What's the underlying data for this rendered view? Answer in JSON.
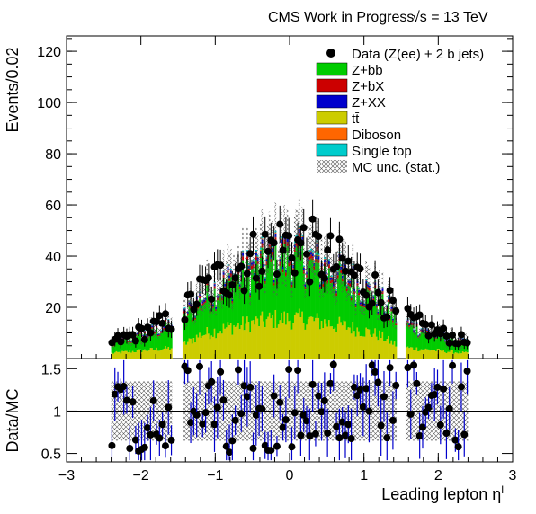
{
  "header": {
    "title": "CMS Work in Progress",
    "energy": "√s = 13 TeV"
  },
  "chart_data": [
    {
      "type": "bar",
      "panel": "main",
      "stacked": true,
      "xlabel": "Leading lepton η",
      "xlabel_sup": "l",
      "ylabel": "Events/0.02",
      "xlim": [
        -3,
        3
      ],
      "ylim": [
        0,
        126
      ],
      "x_ticks": [
        -3,
        -2,
        -1,
        0,
        1,
        2,
        3
      ],
      "x_tick_labels": [
        "−3",
        "−2",
        "−1",
        "0",
        "1",
        "2",
        "3"
      ],
      "y_ticks": [
        20,
        40,
        60,
        80,
        100,
        120
      ],
      "y_tick_labels": [
        "20",
        "40",
        "60",
        "80",
        "100",
        "120"
      ],
      "bin_width": 0.02,
      "eta_range": [
        -2.4,
        2.4
      ],
      "gap_regions": [
        [
          -1.57,
          -1.44
        ],
        [
          1.44,
          1.57
        ]
      ],
      "legend_position": "top-right",
      "legend": [
        {
          "label": "Data (Z(ee) + 2 b jets)",
          "style": "marker",
          "color": "#000000"
        },
        {
          "label": "Z+bb",
          "style": "fill",
          "color": "#00cc00"
        },
        {
          "label": "Z+bX",
          "style": "fill",
          "color": "#cc0000"
        },
        {
          "label": "Z+XX",
          "style": "fill",
          "color": "#0000cc"
        },
        {
          "label": "tt̄",
          "style": "fill",
          "color": "#cccc00"
        },
        {
          "label": "Diboson",
          "style": "fill",
          "color": "#ff6600"
        },
        {
          "label": "Single top",
          "style": "fill",
          "color": "#00cccc"
        },
        {
          "label": "MC unc. (stat.)",
          "style": "hatch",
          "color": "#555555"
        }
      ],
      "envelope_eta": [
        -2.4,
        -2.0,
        -1.6,
        -1.44,
        -1.2,
        -0.8,
        -0.4,
        -0.2,
        0.0,
        0.2,
        0.4,
        0.8,
        1.2,
        1.44,
        1.6,
        2.0,
        2.4
      ],
      "series": [
        {
          "name": "tt̄",
          "color": "#cccc00",
          "values": [
            2,
            3,
            4,
            5,
            9,
            12,
            14,
            15,
            15,
            15,
            14,
            12,
            9,
            5,
            4,
            3,
            2
          ]
        },
        {
          "name": "Z+bb",
          "color": "#00cc00",
          "values": [
            3,
            5,
            8,
            9,
            12,
            16,
            19,
            21,
            22,
            21,
            19,
            16,
            12,
            9,
            8,
            5,
            3
          ]
        },
        {
          "name": "Z+bX",
          "color": "#cc0000",
          "values": [
            0.3,
            0.4,
            0.6,
            0.7,
            0.9,
            1.1,
            1.3,
            1.4,
            1.4,
            1.4,
            1.3,
            1.1,
            0.9,
            0.7,
            0.6,
            0.4,
            0.3
          ]
        },
        {
          "name": "Z+XX",
          "color": "#0000cc",
          "values": [
            0.3,
            0.4,
            0.5,
            0.6,
            0.8,
            1.0,
            1.1,
            1.2,
            1.2,
            1.2,
            1.1,
            1.0,
            0.8,
            0.6,
            0.5,
            0.4,
            0.3
          ]
        },
        {
          "name": "Diboson",
          "color": "#ff6600",
          "values": [
            0,
            0.1,
            0.1,
            0.1,
            0.2,
            0.2,
            0.3,
            0.3,
            0.3,
            0.3,
            0.3,
            0.2,
            0.2,
            0.1,
            0.1,
            0.1,
            0
          ]
        },
        {
          "name": "Single top",
          "color": "#00cccc",
          "values": [
            0.1,
            0.2,
            0.3,
            0.3,
            0.4,
            0.5,
            0.6,
            0.6,
            0.6,
            0.6,
            0.6,
            0.5,
            0.4,
            0.3,
            0.3,
            0.2,
            0.1
          ]
        }
      ],
      "data_series": {
        "name": "Data (Z(ee) + 2 b jets)",
        "y_range": [
          3,
          75
        ]
      }
    },
    {
      "type": "scatter",
      "panel": "ratio",
      "ylabel": "Data/MC",
      "xlim": [
        -3,
        3
      ],
      "ylim": [
        0.4,
        1.62
      ],
      "y_ticks": [
        0.5,
        1,
        1.5
      ],
      "y_tick_labels": [
        "0.5",
        "1",
        "1.5"
      ],
      "reference_line": 1,
      "typical_values": [
        0.55,
        0.7,
        0.85,
        1.0,
        1.15,
        1.3,
        1.5
      ]
    }
  ]
}
